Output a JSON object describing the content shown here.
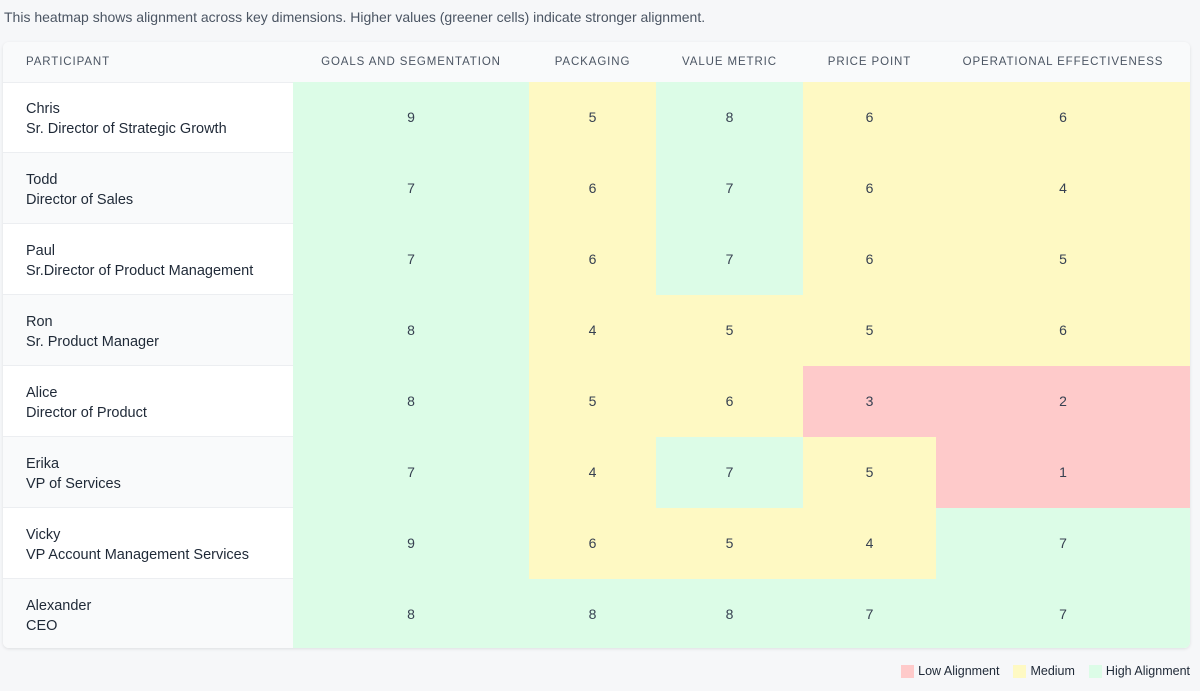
{
  "intro_text": "This heatmap shows alignment across key dimensions. Higher values (greener cells) indicate stronger alignment.",
  "colors": {
    "low": "#fecaca",
    "medium": "#fef9c3",
    "high": "#dcfce7"
  },
  "chart_data": {
    "type": "heatmap",
    "row_header": "PARTICIPANT",
    "columns": [
      "GOALS AND SEGMENTATION",
      "PACKAGING",
      "VALUE METRIC",
      "PRICE POINT",
      "OPERATIONAL EFFECTIVENESS"
    ],
    "rows": [
      {
        "name": "Chris",
        "title": "Sr. Director of Strategic Growth",
        "values": [
          9,
          5,
          8,
          6,
          6
        ]
      },
      {
        "name": "Todd",
        "title": "Director of Sales",
        "values": [
          7,
          6,
          7,
          6,
          4
        ]
      },
      {
        "name": "Paul",
        "title": "Sr.Director of Product Management",
        "values": [
          7,
          6,
          7,
          6,
          5
        ]
      },
      {
        "name": "Ron",
        "title": "Sr. Product Manager",
        "values": [
          8,
          4,
          5,
          5,
          6
        ]
      },
      {
        "name": "Alice",
        "title": "Director of Product",
        "values": [
          8,
          5,
          6,
          3,
          2
        ]
      },
      {
        "name": "Erika",
        "title": "VP of Services",
        "values": [
          7,
          4,
          7,
          5,
          1
        ]
      },
      {
        "name": "Vicky",
        "title": "VP Account Management Services",
        "values": [
          9,
          6,
          5,
          4,
          7
        ]
      },
      {
        "name": "Alexander",
        "title": "CEO",
        "values": [
          8,
          8,
          8,
          7,
          7
        ]
      }
    ],
    "legend": [
      "Low Alignment",
      "Medium",
      "High Alignment"
    ]
  }
}
